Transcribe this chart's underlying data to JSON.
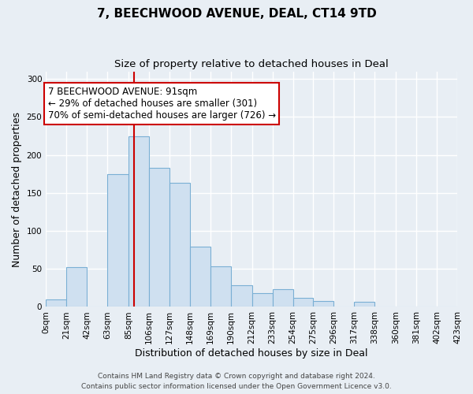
{
  "title": "7, BEECHWOOD AVENUE, DEAL, CT14 9TD",
  "subtitle": "Size of property relative to detached houses in Deal",
  "xlabel": "Distribution of detached houses by size in Deal",
  "ylabel": "Number of detached properties",
  "bin_labels": [
    "0sqm",
    "21sqm",
    "42sqm",
    "63sqm",
    "85sqm",
    "106sqm",
    "127sqm",
    "148sqm",
    "169sqm",
    "190sqm",
    "212sqm",
    "233sqm",
    "254sqm",
    "275sqm",
    "296sqm",
    "317sqm",
    "338sqm",
    "360sqm",
    "381sqm",
    "402sqm",
    "423sqm"
  ],
  "bar_heights": [
    10,
    52,
    0,
    175,
    225,
    183,
    163,
    79,
    53,
    28,
    18,
    23,
    12,
    8,
    0,
    7,
    0,
    0,
    0,
    0
  ],
  "bin_edges": [
    0,
    21,
    42,
    63,
    85,
    106,
    127,
    148,
    169,
    190,
    212,
    233,
    254,
    275,
    296,
    317,
    338,
    360,
    381,
    402,
    423
  ],
  "bar_color": "#cfe0f0",
  "bar_edge_color": "#7aafd4",
  "property_size": 91,
  "vline_color": "#cc0000",
  "annotation_text": "7 BEECHWOOD AVENUE: 91sqm\n← 29% of detached houses are smaller (301)\n70% of semi-detached houses are larger (726) →",
  "annotation_box_color": "#ffffff",
  "annotation_box_edge": "#cc0000",
  "ylim": [
    0,
    310
  ],
  "yticks": [
    0,
    50,
    100,
    150,
    200,
    250,
    300
  ],
  "footer_line1": "Contains HM Land Registry data © Crown copyright and database right 2024.",
  "footer_line2": "Contains public sector information licensed under the Open Government Licence v3.0.",
  "background_color": "#e8eef4",
  "axes_bg_color": "#e8eef4",
  "title_fontsize": 11,
  "subtitle_fontsize": 9.5,
  "axis_label_fontsize": 9,
  "tick_fontsize": 7.5,
  "footer_fontsize": 6.5,
  "grid_color": "#ffffff"
}
